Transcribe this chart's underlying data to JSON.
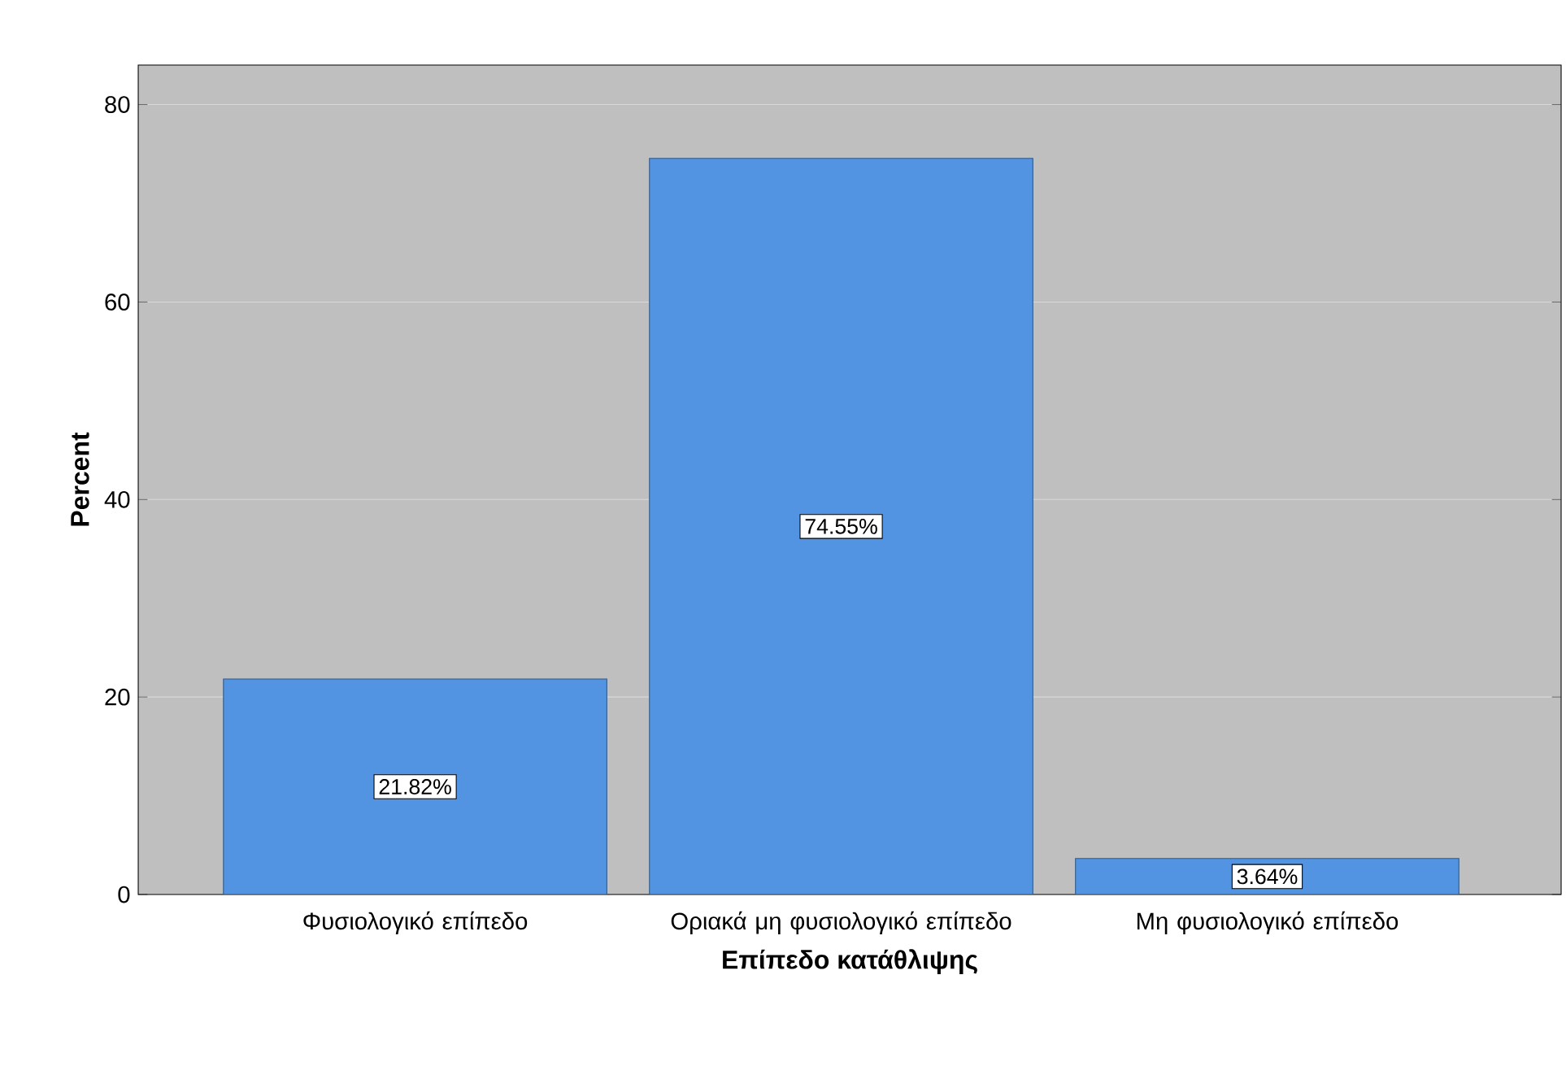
{
  "chart_data": {
    "type": "bar",
    "xlabel": "Επίπεδο κατάθλιψης",
    "ylabel": "Percent",
    "categories": [
      "Φυσιολογικό επίπεδο",
      "Οριακά μη φυσιολογικό επίπεδο",
      "Μη φυσιολογικό επίπεδο"
    ],
    "values": [
      21.82,
      74.55,
      3.64
    ],
    "value_labels": [
      "21.82%",
      "74.55%",
      "3.64%"
    ],
    "color": "#5294e2",
    "ylim": [
      0,
      84
    ],
    "yticks": [
      0,
      20,
      40,
      60,
      80
    ],
    "grid": "y"
  }
}
